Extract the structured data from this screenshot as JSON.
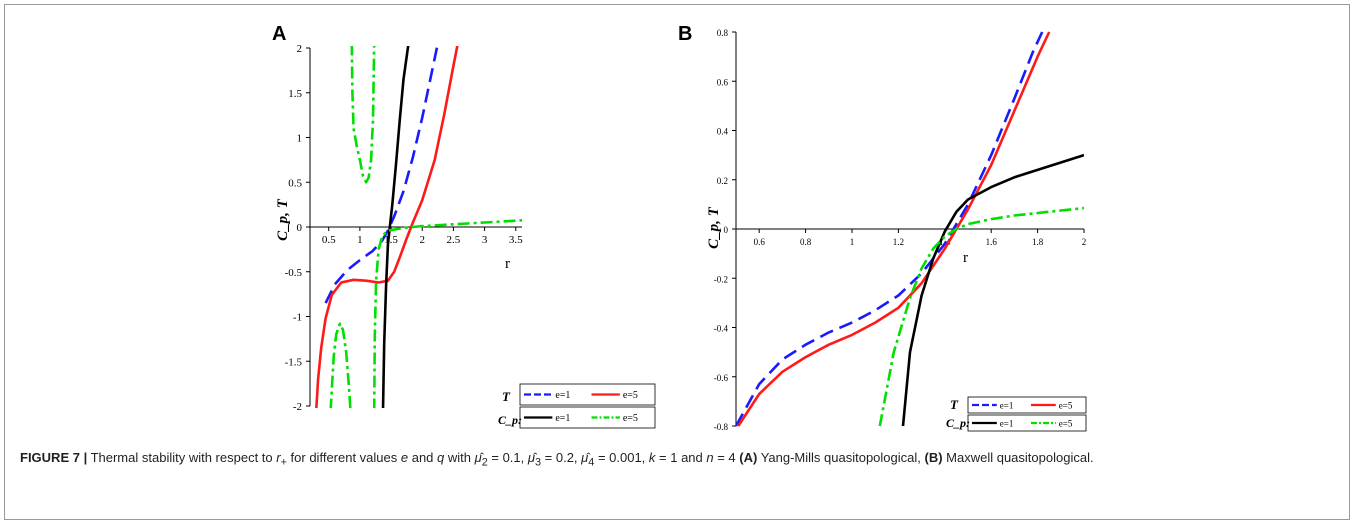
{
  "caption": {
    "figure_label": "FIGURE 7 |",
    "text_before": " Thermal stability with respect to ",
    "var_r": "r",
    "sub_plus": "+",
    "text_mid1": " for different values ",
    "var_e": "e",
    "text_and": " and ",
    "var_q": "q",
    "text_with": " with ",
    "mu2": "μ̂",
    "sub2": "2",
    "val2": " = 0.1, ",
    "mu3": "μ̂",
    "sub3": "3",
    "val3": " = 0.2, ",
    "mu4": "μ̂",
    "sub4": "4",
    "val4": " = 0.001, ",
    "var_k": "k",
    "val_k": " = 1 and ",
    "var_n": "n",
    "val_n": " = 4 ",
    "label_a": "(A)",
    "text_a": " Yang-Mills quasitopological, ",
    "label_b": "(B)",
    "text_b": " Maxwell quasitopological."
  },
  "chart_data": [
    {
      "panel": "A",
      "type": "line",
      "title": "",
      "xlabel": "r",
      "ylabel": "C_p, T",
      "xlim": [
        0.2,
        3.6
      ],
      "ylim": [
        -2,
        2
      ],
      "xticks": [
        0.5,
        1,
        1.5,
        2,
        2.5,
        3,
        3.5
      ],
      "xtick_labels": [
        "0.5",
        "1",
        "1.5",
        "2",
        "2.5",
        "3",
        "3.5"
      ],
      "yticks": [
        -2,
        -1.5,
        -1,
        -0.5,
        0,
        0.5,
        1,
        1.5,
        2
      ],
      "ytick_labels": [
        "-2",
        "-1.5",
        "-1",
        "-0.5",
        "0",
        "0.5",
        "1",
        "1.5",
        "2"
      ],
      "legend": {
        "placement": "bottom-right",
        "group_T": "T",
        "group_Cp": "C_p:",
        "entries": [
          "e=1",
          "e=5",
          "e=1",
          "e=5"
        ]
      },
      "series": [
        {
          "group": "T",
          "name": "e=1",
          "color": "#1a1aff",
          "dash": "long-dash",
          "points": [
            [
              0.45,
              -0.85
            ],
            [
              0.6,
              -0.64
            ],
            [
              0.8,
              -0.48
            ],
            [
              1.0,
              -0.37
            ],
            [
              1.2,
              -0.27
            ],
            [
              1.35,
              -0.16
            ],
            [
              1.45,
              -0.04
            ],
            [
              1.55,
              0.12
            ],
            [
              1.7,
              0.4
            ],
            [
              1.85,
              0.78
            ],
            [
              2.0,
              1.22
            ],
            [
              2.15,
              1.72
            ],
            [
              2.25,
              2.05
            ]
          ]
        },
        {
          "group": "T",
          "name": "e=5",
          "color": "#ff1a1a",
          "dash": "solid",
          "points": [
            [
              0.3,
              -2.05
            ],
            [
              0.33,
              -1.7
            ],
            [
              0.38,
              -1.35
            ],
            [
              0.45,
              -1.02
            ],
            [
              0.55,
              -0.76
            ],
            [
              0.7,
              -0.62
            ],
            [
              0.9,
              -0.59
            ],
            [
              1.1,
              -0.6
            ],
            [
              1.3,
              -0.62
            ],
            [
              1.45,
              -0.6
            ],
            [
              1.55,
              -0.5
            ],
            [
              1.65,
              -0.32
            ],
            [
              1.75,
              -0.13
            ],
            [
              1.85,
              0.05
            ],
            [
              2.0,
              0.3
            ],
            [
              2.2,
              0.75
            ],
            [
              2.35,
              1.25
            ],
            [
              2.5,
              1.8
            ],
            [
              2.57,
              2.05
            ]
          ]
        },
        {
          "group": "Cp",
          "name": "e=1",
          "color": "#000000",
          "dash": "solid",
          "points": [
            [
              1.37,
              -2.05
            ],
            [
              1.39,
              -1.3
            ],
            [
              1.42,
              -0.65
            ],
            [
              1.45,
              -0.2
            ],
            [
              1.48,
              0.0
            ],
            [
              1.52,
              0.25
            ],
            [
              1.58,
              0.7
            ],
            [
              1.64,
              1.2
            ],
            [
              1.7,
              1.65
            ],
            [
              1.78,
              2.05
            ]
          ]
        },
        {
          "group": "Cp",
          "name": "e=5",
          "color": "#00e000",
          "dash": "dash-dot",
          "branches": [
            [
              [
                0.53,
                -2.05
              ],
              [
                0.58,
                -1.45
              ],
              [
                0.62,
                -1.2
              ],
              [
                0.68,
                -1.08
              ],
              [
                0.73,
                -1.15
              ],
              [
                0.78,
                -1.4
              ],
              [
                0.82,
                -1.75
              ],
              [
                0.85,
                -2.05
              ]
            ],
            [
              [
                0.87,
                2.05
              ],
              [
                0.88,
                1.5
              ],
              [
                0.9,
                1.1
              ],
              [
                0.95,
                0.9
              ],
              [
                1.0,
                0.75
              ],
              [
                1.05,
                0.57
              ],
              [
                1.1,
                0.5
              ],
              [
                1.14,
                0.55
              ],
              [
                1.18,
                0.75
              ],
              [
                1.21,
                1.2
              ],
              [
                1.23,
                2.05
              ]
            ],
            [
              [
                1.23,
                -2.05
              ],
              [
                1.24,
                -1.2
              ],
              [
                1.26,
                -0.6
              ],
              [
                1.3,
                -0.25
              ],
              [
                1.36,
                -0.1
              ],
              [
                1.45,
                -0.04
              ],
              [
                1.7,
                -0.01
              ],
              [
                2.0,
                0.01
              ],
              [
                2.5,
                0.03
              ],
              [
                3.0,
                0.05
              ],
              [
                3.5,
                0.07
              ],
              [
                3.6,
                0.075
              ]
            ]
          ]
        }
      ]
    },
    {
      "panel": "B",
      "type": "line",
      "title": "",
      "xlabel": "r",
      "ylabel": "C_p, T",
      "xlim": [
        0.5,
        2
      ],
      "ylim": [
        -0.8,
        0.8
      ],
      "xticks": [
        0.6,
        0.8,
        1,
        1.2,
        1.4,
        1.6,
        1.8,
        2
      ],
      "xtick_labels": [
        "0.6",
        "0.8",
        "1",
        "1.2",
        "1.4",
        "1.6",
        "1.8",
        "2"
      ],
      "yticks": [
        -0.8,
        -0.6,
        -0.4,
        -0.2,
        0,
        0.2,
        0.4,
        0.6,
        0.8
      ],
      "ytick_labels": [
        "-0.8",
        "-0.6",
        "-0.4",
        "-0.2",
        "0",
        "0.2",
        "0.4",
        "0.6",
        "0.8"
      ],
      "legend": {
        "placement": "bottom-right",
        "group_T": "T",
        "group_Cp": "C_p:",
        "entries": [
          "e=1",
          "e=5",
          "e=1",
          "e=5"
        ]
      },
      "series": [
        {
          "group": "T",
          "name": "e=1",
          "color": "#1a1aff",
          "dash": "long-dash",
          "points": [
            [
              0.5,
              -0.8
            ],
            [
              0.6,
              -0.63
            ],
            [
              0.7,
              -0.53
            ],
            [
              0.8,
              -0.47
            ],
            [
              0.9,
              -0.42
            ],
            [
              1.0,
              -0.38
            ],
            [
              1.1,
              -0.33
            ],
            [
              1.2,
              -0.27
            ],
            [
              1.3,
              -0.18
            ],
            [
              1.4,
              -0.06
            ],
            [
              1.5,
              0.1
            ],
            [
              1.6,
              0.3
            ],
            [
              1.7,
              0.53
            ],
            [
              1.78,
              0.72
            ],
            [
              1.82,
              0.8
            ]
          ]
        },
        {
          "group": "T",
          "name": "e=5",
          "color": "#ff1a1a",
          "dash": "solid",
          "points": [
            [
              0.51,
              -0.8
            ],
            [
              0.6,
              -0.67
            ],
            [
              0.7,
              -0.58
            ],
            [
              0.8,
              -0.52
            ],
            [
              0.9,
              -0.47
            ],
            [
              1.0,
              -0.43
            ],
            [
              1.1,
              -0.38
            ],
            [
              1.2,
              -0.32
            ],
            [
              1.3,
              -0.22
            ],
            [
              1.4,
              -0.08
            ],
            [
              1.45,
              0.0
            ],
            [
              1.5,
              0.08
            ],
            [
              1.6,
              0.26
            ],
            [
              1.7,
              0.48
            ],
            [
              1.8,
              0.7
            ],
            [
              1.85,
              0.8
            ]
          ]
        },
        {
          "group": "Cp",
          "name": "e=1",
          "color": "#000000",
          "dash": "solid",
          "points": [
            [
              1.22,
              -0.8
            ],
            [
              1.25,
              -0.5
            ],
            [
              1.3,
              -0.27
            ],
            [
              1.35,
              -0.12
            ],
            [
              1.4,
              -0.01
            ],
            [
              1.45,
              0.07
            ],
            [
              1.5,
              0.12
            ],
            [
              1.6,
              0.17
            ],
            [
              1.7,
              0.21
            ],
            [
              1.8,
              0.24
            ],
            [
              1.9,
              0.27
            ],
            [
              2.0,
              0.3
            ]
          ]
        },
        {
          "group": "Cp",
          "name": "e=5",
          "color": "#00e000",
          "dash": "dash-dot",
          "points": [
            [
              1.12,
              -0.8
            ],
            [
              1.18,
              -0.5
            ],
            [
              1.25,
              -0.28
            ],
            [
              1.3,
              -0.16
            ],
            [
              1.35,
              -0.08
            ],
            [
              1.4,
              -0.03
            ],
            [
              1.45,
              0.0
            ],
            [
              1.5,
              0.02
            ],
            [
              1.6,
              0.04
            ],
            [
              1.7,
              0.055
            ],
            [
              1.8,
              0.065
            ],
            [
              1.9,
              0.075
            ],
            [
              2.0,
              0.085
            ]
          ]
        }
      ]
    }
  ]
}
